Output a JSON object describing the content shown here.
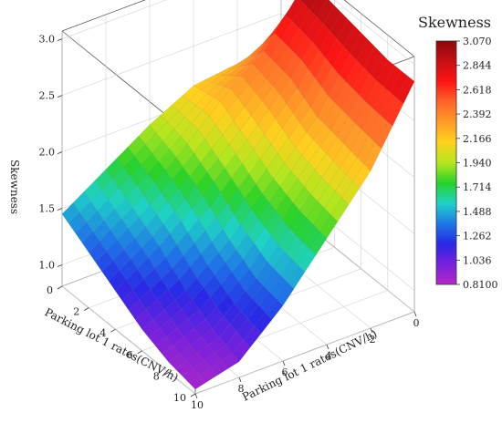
{
  "chart_data": {
    "type": "surface3d",
    "zlabel": "Skewness",
    "xlabel": "Parking lot 1 rates(CNV/h)",
    "ylabel": "Parking lot 1 rates(CNV/h)",
    "x_range": [
      0,
      10
    ],
    "y_range": [
      0,
      10
    ],
    "zlim": [
      0.81,
      3.07
    ],
    "z_ticks": [
      "1.0",
      "1.5",
      "2.0",
      "2.5",
      "3.0"
    ],
    "x_ticks": [
      "0",
      "2",
      "4",
      "6",
      "8",
      "10"
    ],
    "y_ticks": [
      "0",
      "2",
      "4",
      "6",
      "8",
      "10"
    ],
    "grid": true,
    "colorbar": {
      "title": "Skewness",
      "ticks": [
        "3.070",
        "2.844",
        "2.618",
        "2.392",
        "2.166",
        "1.940",
        "1.714",
        "1.488",
        "1.262",
        "1.036",
        "0.8100"
      ],
      "colors": [
        "#8b0a0a",
        "#c80f14",
        "#ff1414",
        "#ff6428",
        "#ff9c28",
        "#ffd21e",
        "#b4e61e",
        "#28d228",
        "#1ed2c8",
        "#1e78e6",
        "#2828e6",
        "#7820dc",
        "#b428c8"
      ]
    },
    "surface": {
      "description_rows": "z values sampled on x,y grid (x along rows 0..10, y along columns 0..10)",
      "x": [
        0,
        2,
        4,
        6,
        8,
        10
      ],
      "y": [
        0,
        2,
        4,
        6,
        8,
        10
      ],
      "z": [
        [
          2.3,
          2.2,
          2.15,
          1.95,
          1.7,
          1.45
        ],
        [
          3.0,
          2.5,
          2.2,
          1.85,
          1.55,
          1.3
        ],
        [
          2.95,
          2.45,
          2.05,
          1.7,
          1.4,
          1.15
        ],
        [
          2.9,
          2.3,
          1.9,
          1.5,
          1.2,
          1.0
        ],
        [
          2.85,
          2.25,
          1.8,
          1.35,
          1.05,
          0.9
        ],
        [
          2.85,
          2.2,
          1.75,
          1.3,
          0.95,
          0.85
        ]
      ]
    }
  }
}
